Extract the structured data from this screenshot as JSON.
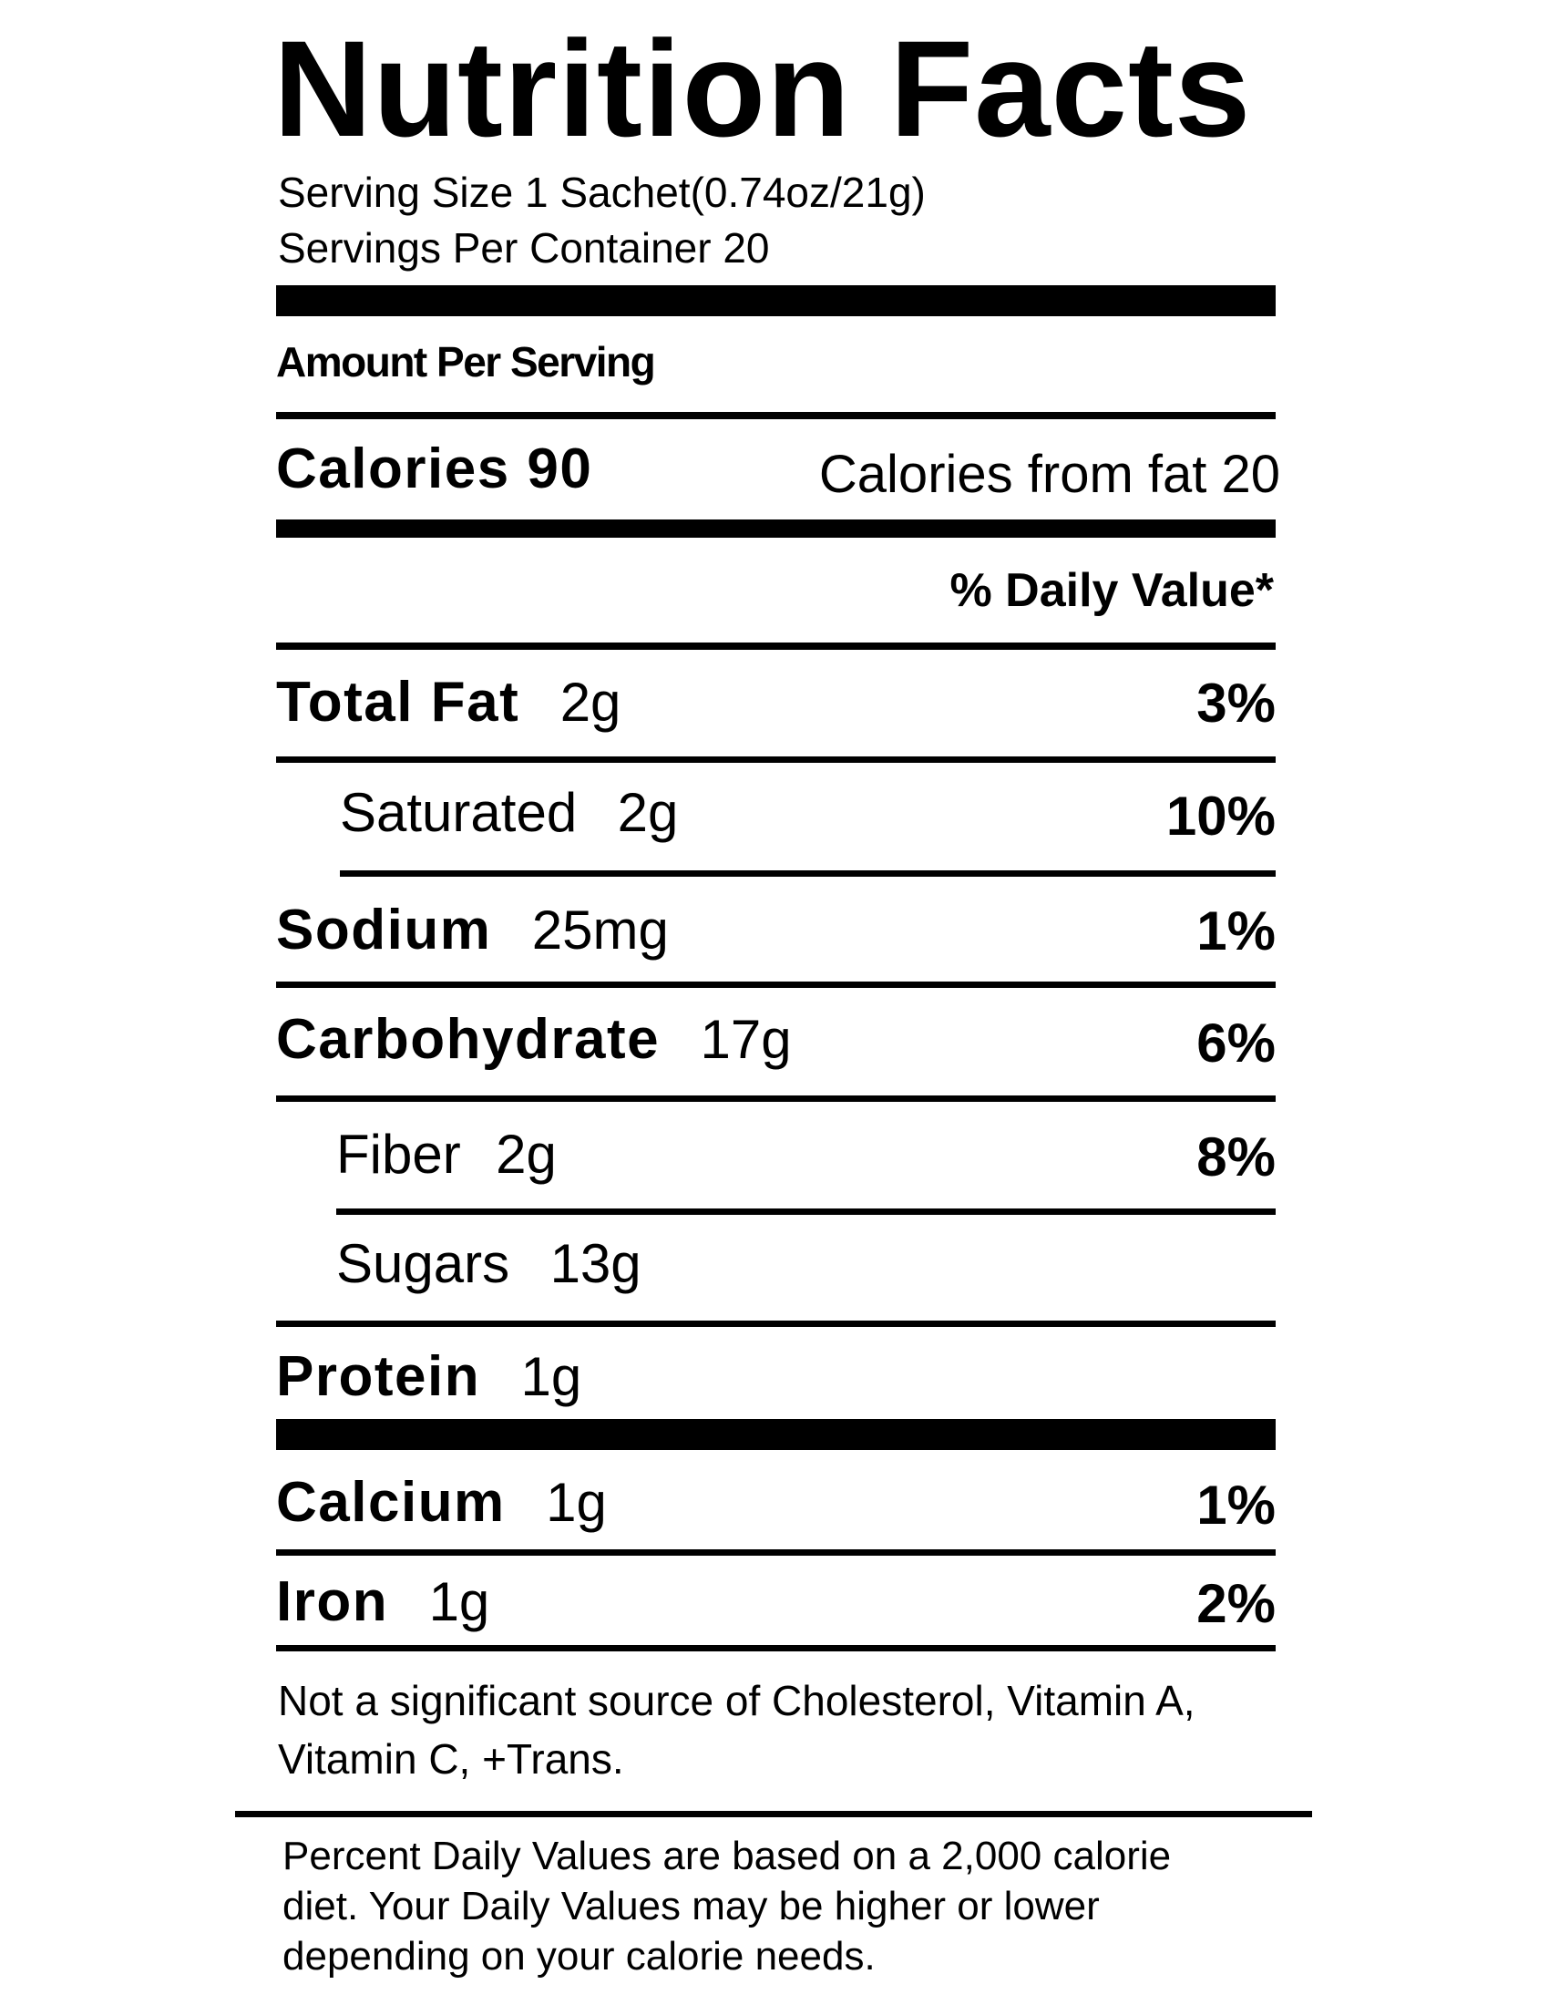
{
  "label": {
    "title": "Nutrition Facts",
    "serving_size": "Serving Size 1 Sachet(0.74oz/21g)",
    "servings_per_container": "Servings Per Container  20",
    "amount_per_serving": "Amount Per Serving",
    "calories": {
      "name": "Calories 90",
      "from_fat": "Calories from fat 20"
    },
    "daily_value_header": "% Daily Value*",
    "nutrients": [
      {
        "name": "Total Fat",
        "amount": "2g",
        "dv": "3%"
      },
      {
        "name": "Saturated",
        "amount": "2g",
        "dv": "10%"
      },
      {
        "name": "Sodium",
        "amount": "25mg",
        "dv": "1%"
      },
      {
        "name": "Carbohydrate",
        "amount": "17g",
        "dv": "6%"
      },
      {
        "name": "Fiber",
        "amount": "2g",
        "dv": "8%"
      },
      {
        "name": "Sugars",
        "amount": "13g",
        "dv": ""
      },
      {
        "name": "Protein",
        "amount": "1g",
        "dv": ""
      },
      {
        "name": "Calcium",
        "amount": "1g",
        "dv": "1%"
      },
      {
        "name": "Iron",
        "amount": "1g",
        "dv": "2%"
      }
    ],
    "note_line1": "Not a significant source of Cholesterol, Vitamin A,",
    "note_line2": "Vitamin C, +Trans.",
    "footnote_line1": "Percent Daily Values are based on a 2,000 calorie",
    "footnote_line2": "diet. Your Daily Values may be higher or lower",
    "footnote_line3": "depending on your calorie needs."
  }
}
